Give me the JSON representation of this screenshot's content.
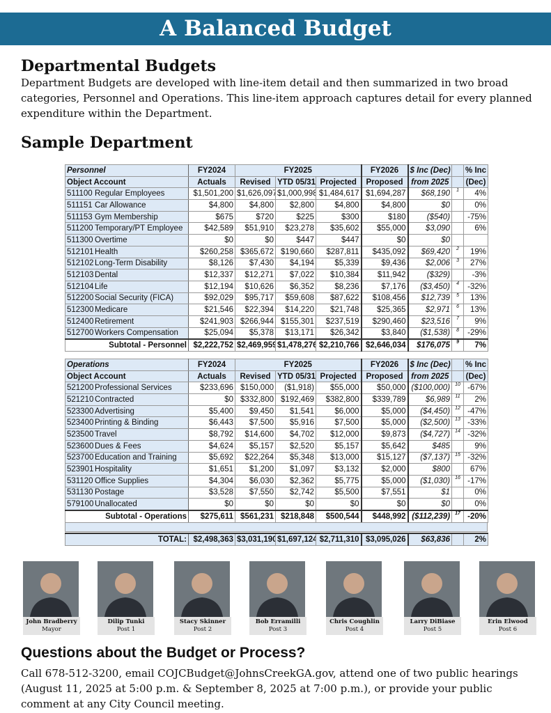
{
  "banner": {
    "title": "A Balanced Budget"
  },
  "intro": {
    "heading": "Departmental Budgets",
    "text": "Department Budgets are developed with line-item detail and then summarized in two broad categories, Personnel and Operations. This line-item approach captures detail for every planned expenditure within the Department."
  },
  "sample": {
    "heading": "Sample Department"
  },
  "tables": [
    {
      "header1": [
        "Personnel",
        "FY2024",
        "FY2025",
        "FY2026",
        "$ Inc (Dec)",
        "% Inc"
      ],
      "header2": [
        "Object Account",
        "Actuals",
        "Revised",
        "YTD 05/31",
        "Projected",
        "Proposed",
        "from 2025",
        "(Dec)"
      ],
      "rows": [
        {
          "code": "511100",
          "account": "Regular Employees",
          "values": [
            "$1,501,200",
            "$1,626,097",
            "$1,000,998",
            "$1,484,617",
            "$1,694,287",
            "$68,190"
          ],
          "note": "1",
          "pct": "4%"
        },
        {
          "code": "511151",
          "account": "Car Allowance",
          "values": [
            "$4,800",
            "$4,800",
            "$2,800",
            "$4,800",
            "$4,800",
            "$0"
          ],
          "pct": "0%"
        },
        {
          "code": "511153",
          "account": "Gym Membership",
          "values": [
            "$675",
            "$720",
            "$225",
            "$300",
            "$180",
            "($540)"
          ],
          "pct": "-75%"
        },
        {
          "code": "511200",
          "account": "Temporary/PT Employee",
          "values": [
            "$42,589",
            "$51,910",
            "$23,278",
            "$35,602",
            "$55,000",
            "$3,090"
          ],
          "pct": "6%"
        },
        {
          "code": "511300",
          "account": "Overtime",
          "values": [
            "$0",
            "$0",
            "$447",
            "$447",
            "$0",
            "$0"
          ]
        },
        {
          "code": "512101",
          "account": "Health",
          "values": [
            "$260,258",
            "$365,672",
            "$190,660",
            "$287,811",
            "$435,092",
            "$69,420"
          ],
          "note": "2",
          "pct": "19%"
        },
        {
          "code": "512102",
          "account": "Long-Term Disability",
          "values": [
            "$8,126",
            "$7,430",
            "$4,194",
            "$5,339",
            "$9,436",
            "$2,006"
          ],
          "note": "3",
          "pct": "27%"
        },
        {
          "code": "512103",
          "account": "Dental",
          "values": [
            "$12,337",
            "$12,271",
            "$7,022",
            "$10,384",
            "$11,942",
            "($329)"
          ],
          "pct": "-3%"
        },
        {
          "code": "512104",
          "account": "Life",
          "values": [
            "$12,194",
            "$10,626",
            "$6,352",
            "$8,236",
            "$7,176",
            "($3,450)"
          ],
          "note": "4",
          "pct": "-32%"
        },
        {
          "code": "512200",
          "account": "Social Security (FICA)",
          "values": [
            "$92,029",
            "$95,717",
            "$59,608",
            "$87,622",
            "$108,456",
            "$12,739"
          ],
          "note": "5",
          "pct": "13%"
        },
        {
          "code": "512300",
          "account": "Medicare",
          "values": [
            "$21,546",
            "$22,394",
            "$14,220",
            "$21,748",
            "$25,365",
            "$2,971"
          ],
          "note": "6",
          "pct": "13%"
        },
        {
          "code": "512400",
          "account": "Retirement",
          "values": [
            "$241,903",
            "$266,944",
            "$155,301",
            "$237,519",
            "$290,460",
            "$23,516"
          ],
          "note": "7",
          "pct": "9%"
        },
        {
          "code": "512700",
          "account": "Workers Compensation",
          "values": [
            "$25,094",
            "$5,378",
            "$13,171",
            "$26,342",
            "$3,840",
            "($1,538)"
          ],
          "note": "8",
          "pct": "-29%"
        }
      ],
      "subtotal": {
        "label": "Subtotal - Personnel",
        "values": [
          "$2,222,752",
          "$2,469,959",
          "$1,478,276",
          "$2,210,766",
          "$2,646,034",
          "$176,075"
        ],
        "note": "9",
        "pct": "7%"
      }
    },
    {
      "header1": [
        "Operations",
        "FY2024",
        "FY2025",
        "FY2026",
        "$ Inc (Dec)",
        "% Inc"
      ],
      "header2": [
        "Object Account",
        "Actuals",
        "Revised",
        "YTD 05/31",
        "Projected",
        "Proposed",
        "from 2025",
        "(Dec)"
      ],
      "rows": [
        {
          "code": "521200",
          "account": "Professional Services",
          "values": [
            "$233,696",
            "$150,000",
            "($1,918)",
            "$55,000",
            "$50,000",
            "($100,000)"
          ],
          "note": "10",
          "pct": "-67%"
        },
        {
          "code": "521210",
          "account": "Contracted",
          "values": [
            "$0",
            "$332,800",
            "$192,469",
            "$382,800",
            "$339,789",
            "$6,989"
          ],
          "note": "11",
          "pct": "2%"
        },
        {
          "code": "523300",
          "account": "Advertising",
          "values": [
            "$5,400",
            "$9,450",
            "$1,541",
            "$6,000",
            "$5,000",
            "($4,450)"
          ],
          "note": "12",
          "pct": "-47%"
        },
        {
          "code": "523400",
          "account": "Printing & Binding",
          "values": [
            "$6,443",
            "$7,500",
            "$5,916",
            "$7,500",
            "$5,000",
            "($2,500)"
          ],
          "note": "13",
          "pct": "-33%"
        },
        {
          "code": "523500",
          "account": "Travel",
          "values": [
            "$8,792",
            "$14,600",
            "$4,702",
            "$12,000",
            "$9,873",
            "($4,727)"
          ],
          "note": "14",
          "pct": "-32%"
        },
        {
          "code": "523600",
          "account": "Dues & Fees",
          "values": [
            "$4,624",
            "$5,157",
            "$2,520",
            "$5,157",
            "$5,642",
            "$485"
          ],
          "pct": "9%"
        },
        {
          "code": "523700",
          "account": "Education and Training",
          "values": [
            "$5,692",
            "$22,264",
            "$5,348",
            "$13,000",
            "$15,127",
            "($7,137)"
          ],
          "note": "15",
          "pct": "-32%"
        },
        {
          "code": "523901",
          "account": "Hospitality",
          "values": [
            "$1,651",
            "$1,200",
            "$1,097",
            "$3,132",
            "$2,000",
            "$800"
          ],
          "pct": "67%"
        },
        {
          "code": "531120",
          "account": "Office Supplies",
          "values": [
            "$4,304",
            "$6,030",
            "$2,362",
            "$5,775",
            "$5,000",
            "($1,030)"
          ],
          "note": "16",
          "pct": "-17%"
        },
        {
          "code": "531130",
          "account": "Postage",
          "values": [
            "$3,528",
            "$7,550",
            "$2,742",
            "$5,500",
            "$7,551",
            "$1"
          ],
          "pct": "0%"
        },
        {
          "code": "579100",
          "account": "Unallocated",
          "values": [
            "$0",
            "$0",
            "$0",
            "$0",
            "$0",
            "$0"
          ],
          "pct": "0%"
        }
      ],
      "subtotal": {
        "label": "Subtotal - Operations",
        "values": [
          "$275,611",
          "$561,231",
          "$218,848",
          "$500,544",
          "$448,992",
          "($112,239)"
        ],
        "note": "17",
        "pct": "-20%"
      }
    }
  ],
  "total": {
    "label": "TOTAL:",
    "values": [
      "$2,498,363",
      "$3,031,190",
      "$1,697,124",
      "$2,711,310",
      "$3,095,026",
      "$63,836"
    ],
    "pct": "2%"
  },
  "council": [
    {
      "name": "John Bradberry",
      "role": "Mayor"
    },
    {
      "name": "Dilip Tunki",
      "role": "Post 1"
    },
    {
      "name": "Stacy Skinner",
      "role": "Post 2"
    },
    {
      "name": "Bob Erramilli",
      "role": "Post 3"
    },
    {
      "name": "Chris Coughlin",
      "role": "Post 4"
    },
    {
      "name": "Larry DiBiase",
      "role": "Post 5"
    },
    {
      "name": "Erin Elwood",
      "role": "Post 6"
    }
  ],
  "questions": {
    "heading": "Questions about the Budget or Process?",
    "text": "Call 678-512-3200, email COJCBudget@JohnsCreekGA.gov, attend one of two public hearings (August 11, 2025 at 5:00 p.m. & September 8, 2025 at 7:00 p.m.), or provide your public comment at any City Council meeting."
  }
}
